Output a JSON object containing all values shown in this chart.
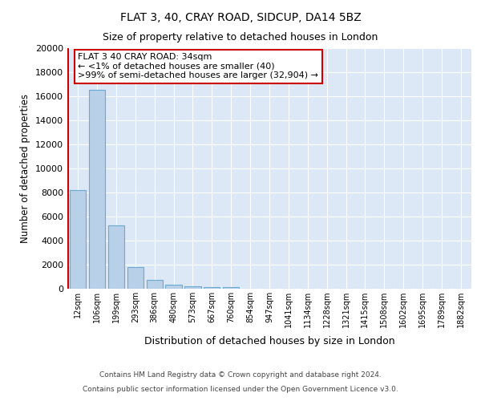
{
  "title1": "FLAT 3, 40, CRAY ROAD, SIDCUP, DA14 5BZ",
  "title2": "Size of property relative to detached houses in London",
  "xlabel": "Distribution of detached houses by size in London",
  "ylabel": "Number of detached properties",
  "categories": [
    "12sqm",
    "106sqm",
    "199sqm",
    "293sqm",
    "386sqm",
    "480sqm",
    "573sqm",
    "667sqm",
    "760sqm",
    "854sqm",
    "947sqm",
    "1041sqm",
    "1134sqm",
    "1228sqm",
    "1321sqm",
    "1415sqm",
    "1508sqm",
    "1602sqm",
    "1695sqm",
    "1789sqm",
    "1882sqm"
  ],
  "values": [
    8200,
    16500,
    5300,
    1800,
    750,
    350,
    200,
    150,
    150,
    0,
    0,
    0,
    0,
    0,
    0,
    0,
    0,
    0,
    0,
    0,
    0
  ],
  "bar_color": "#b8d0e8",
  "bar_edge_color": "#6aaad4",
  "vline_color": "#cc0000",
  "annotation_text": "FLAT 3 40 CRAY ROAD: 34sqm\n← <1% of detached houses are smaller (40)\n>99% of semi-detached houses are larger (32,904) →",
  "annotation_box_facecolor": "#ffffff",
  "annotation_box_edgecolor": "#cc0000",
  "ylim": [
    0,
    20000
  ],
  "yticks": [
    0,
    2000,
    4000,
    6000,
    8000,
    10000,
    12000,
    14000,
    16000,
    18000,
    20000
  ],
  "footer_line1": "Contains HM Land Registry data © Crown copyright and database right 2024.",
  "footer_line2": "Contains public sector information licensed under the Open Government Licence v3.0.",
  "fig_bg_color": "#ffffff",
  "plot_bg_color": "#dce8f5"
}
